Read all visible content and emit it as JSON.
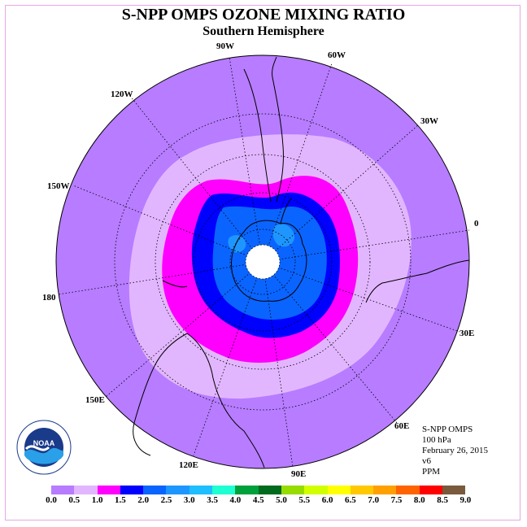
{
  "title": "S-NPP OMPS OZONE MIXING RATIO",
  "subtitle": "Southern Hemisphere",
  "longitude_labels": [
    "90W",
    "60W",
    "30W",
    "0",
    "30E",
    "60E",
    "90E",
    "120E",
    "150E",
    "180",
    "150W",
    "120W"
  ],
  "info": {
    "instrument": "S-NPP OMPS",
    "level": "100 hPa",
    "date": "February 26, 2015",
    "version": "v6",
    "units": "PPM"
  },
  "logo": {
    "text": "NOAA",
    "icon": "noaa-logo-icon"
  },
  "colorbar": {
    "ticks": [
      "0.0",
      "0.5",
      "1.0",
      "1.5",
      "2.0",
      "2.5",
      "3.0",
      "3.5",
      "4.0",
      "4.5",
      "5.0",
      "5.5",
      "6.0",
      "6.5",
      "7.0",
      "7.5",
      "8.0",
      "8.5",
      "9.0"
    ],
    "colors": [
      "#b77cff",
      "#e2b6ff",
      "#ff00ff",
      "#0000ff",
      "#0a64ff",
      "#1e96ff",
      "#1ebeff",
      "#1effd2",
      "#00a03c",
      "#006a1e",
      "#96dc00",
      "#d2ff00",
      "#ffff00",
      "#ffc800",
      "#ffa000",
      "#ff6400",
      "#ff0000",
      "#7a5a3c"
    ]
  },
  "map_data": {
    "projection": "south polar stereographic",
    "field": "ozone mixing ratio",
    "contour_levels_shown": [
      "0.0-0.5",
      "0.5-1.0",
      "1.0-1.5",
      "1.5-2.0",
      "2.0-2.5",
      "2.5-3.0"
    ]
  }
}
